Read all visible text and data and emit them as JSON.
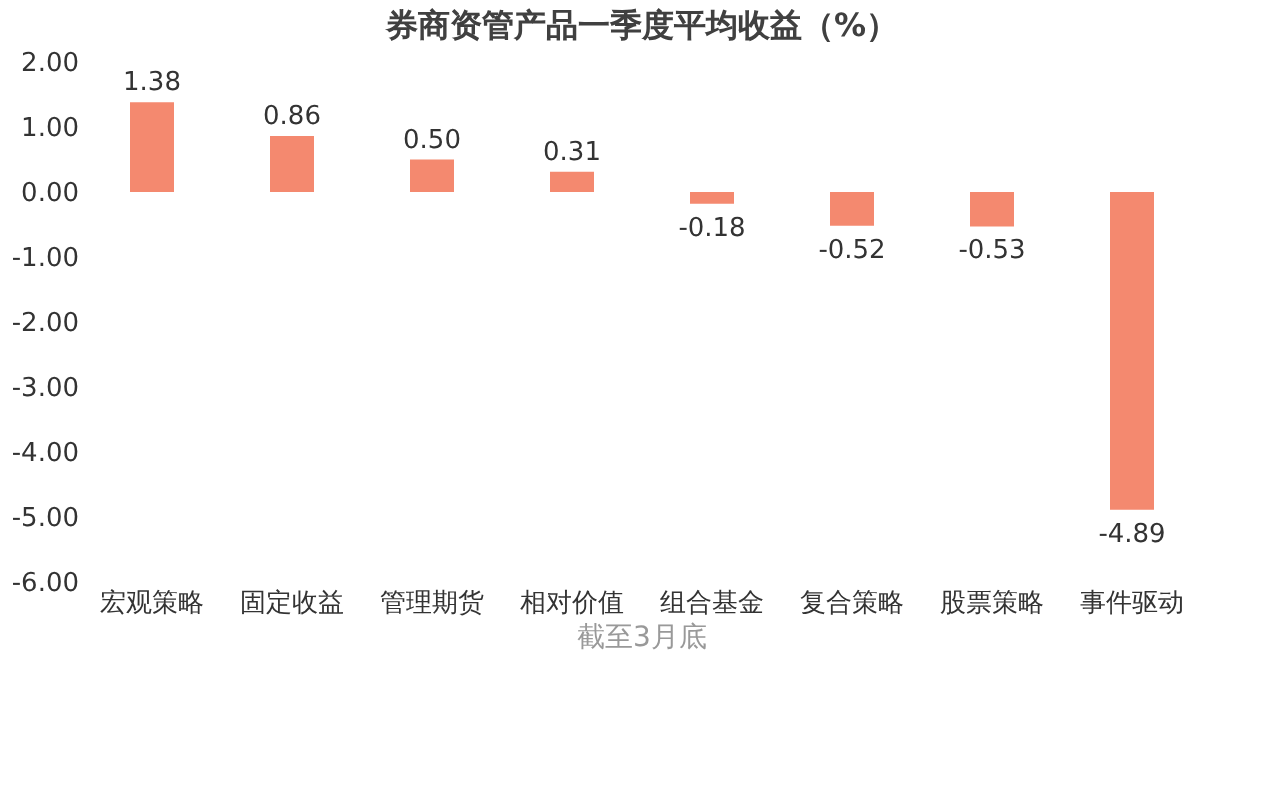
{
  "chart_data": {
    "type": "bar",
    "title": "券商资管产品一季度平均收益（%）",
    "categories": [
      "宏观策略",
      "固定收益",
      "管理期货",
      "相对价值",
      "组合基金",
      "复合策略",
      "股票策略",
      "事件驱动"
    ],
    "values": [
      1.38,
      0.86,
      0.5,
      0.31,
      -0.18,
      -0.52,
      -0.53,
      -4.89
    ],
    "value_labels": [
      "1.38",
      "0.86",
      "0.50",
      "0.31",
      "-0.18",
      "-0.52",
      "-0.53",
      "-4.89"
    ],
    "color": "#f4896f",
    "ylim": [
      -6,
      2
    ],
    "yticks": [
      {
        "value": 2,
        "label": "2.00"
      },
      {
        "value": 1,
        "label": "1.00"
      },
      {
        "value": 0,
        "label": "0.00"
      },
      {
        "value": -1,
        "label": "-1.00"
      },
      {
        "value": -2,
        "label": "-2.00"
      },
      {
        "value": -3,
        "label": "-3.00"
      },
      {
        "value": -4,
        "label": "-4.00"
      },
      {
        "value": -5,
        "label": "-5.00"
      },
      {
        "value": -6,
        "label": "-6.00"
      }
    ],
    "grid": false,
    "annotations": [
      "截至3月底"
    ]
  }
}
